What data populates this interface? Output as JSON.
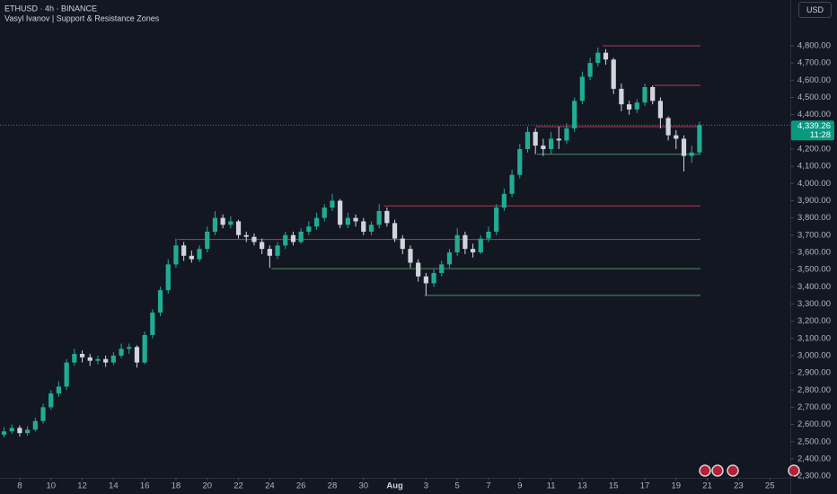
{
  "chart_data": {
    "type": "candlestick",
    "title": "ETHUSD · 4h · BINANCE",
    "subtitle": "Vasyl Ivanov | Support & Resistance Zones",
    "currency": "USD",
    "up_color": "#22ab94",
    "down_color": "#d1d4dc",
    "x": [
      -1,
      -0.5,
      0,
      0.5,
      1,
      1.5,
      2,
      2.5,
      3,
      3.5,
      4,
      4.5,
      5,
      5.5,
      6,
      6.5,
      7,
      7.5,
      8,
      8.5,
      9,
      9.5,
      10,
      10.5,
      11,
      11.5,
      12,
      12.5,
      13,
      13.5,
      14,
      14.5,
      15,
      15.5,
      16,
      16.5,
      17,
      17.5,
      18,
      18.5,
      19,
      19.5,
      20,
      20.5,
      21,
      21.5,
      22,
      22.5,
      23,
      23.5,
      24,
      24.5,
      25,
      25.5,
      26,
      26.5,
      27,
      27.5,
      28,
      28.5,
      29,
      29.5,
      30,
      30.5,
      31,
      31.5,
      32,
      32.5,
      33,
      33.5,
      34,
      34.5,
      35,
      35.5,
      36,
      36.5,
      37,
      37.5,
      38,
      38.5,
      39,
      39.5,
      40,
      40.5,
      41,
      41.5,
      42,
      42.5,
      43,
      43.5
    ],
    "open": [
      2540,
      2560,
      2580,
      2550,
      2570,
      2620,
      2700,
      2780,
      2820,
      2960,
      3010,
      2990,
      2970,
      2980,
      2960,
      3000,
      3040,
      3050,
      2960,
      3120,
      3250,
      3380,
      3530,
      3640,
      3580,
      3560,
      3620,
      3720,
      3800,
      3760,
      3780,
      3700,
      3690,
      3660,
      3620,
      3580,
      3640,
      3700,
      3660,
      3720,
      3750,
      3800,
      3860,
      3900,
      3760,
      3800,
      3780,
      3720,
      3760,
      3840,
      3770,
      3680,
      3620,
      3540,
      3460,
      3420,
      3480,
      3530,
      3600,
      3700,
      3620,
      3600,
      3680,
      3720,
      3860,
      3940,
      4050,
      4200,
      4300,
      4220,
      4200,
      4260,
      4250,
      4320,
      4480,
      4620,
      4700,
      4760,
      4720,
      4550,
      4460,
      4430,
      4470,
      4560,
      4480,
      4380,
      4280,
      4260,
      4160,
      4180
    ],
    "high": [
      2585,
      2600,
      2595,
      2590,
      2640,
      2720,
      2800,
      2850,
      2980,
      3040,
      3030,
      3010,
      3000,
      3000,
      3020,
      3070,
      3070,
      3060,
      3140,
      3270,
      3400,
      3560,
      3680,
      3660,
      3610,
      3640,
      3750,
      3840,
      3820,
      3810,
      3790,
      3720,
      3710,
      3680,
      3640,
      3660,
      3720,
      3720,
      3740,
      3780,
      3830,
      3880,
      3940,
      3910,
      3830,
      3820,
      3800,
      3780,
      3880,
      3860,
      3790,
      3700,
      3640,
      3560,
      3480,
      3500,
      3550,
      3620,
      3740,
      3720,
      3650,
      3700,
      3750,
      3880,
      3970,
      4080,
      4230,
      4330,
      4320,
      4260,
      4300,
      4330,
      4350,
      4500,
      4650,
      4730,
      4790,
      4780,
      4730,
      4580,
      4480,
      4490,
      4580,
      4570,
      4500,
      4390,
      4310,
      4280,
      4220,
      4360
    ],
    "low": [
      2525,
      2545,
      2530,
      2535,
      2560,
      2605,
      2685,
      2760,
      2800,
      2940,
      2960,
      2940,
      2950,
      2935,
      2945,
      2985,
      3010,
      2930,
      2950,
      3100,
      3230,
      3360,
      3510,
      3550,
      3540,
      3545,
      3600,
      3700,
      3740,
      3740,
      3680,
      3660,
      3640,
      3590,
      3510,
      3560,
      3620,
      3640,
      3650,
      3700,
      3730,
      3780,
      3840,
      3740,
      3740,
      3750,
      3700,
      3700,
      3740,
      3750,
      3660,
      3590,
      3510,
      3430,
      3350,
      3400,
      3460,
      3510,
      3580,
      3590,
      3570,
      3590,
      3660,
      3700,
      3840,
      3920,
      4030,
      4180,
      4170,
      4160,
      4170,
      4200,
      4230,
      4300,
      4460,
      4600,
      4680,
      4690,
      4520,
      4420,
      4400,
      4410,
      4450,
      4460,
      4320,
      4250,
      4200,
      4070,
      4120,
      4170
    ],
    "close": [
      2560,
      2580,
      2550,
      2570,
      2620,
      2700,
      2780,
      2820,
      2960,
      3010,
      2990,
      2970,
      2980,
      2960,
      3000,
      3040,
      3050,
      2960,
      3120,
      3250,
      3380,
      3530,
      3640,
      3580,
      3560,
      3620,
      3720,
      3800,
      3760,
      3780,
      3700,
      3690,
      3660,
      3620,
      3580,
      3640,
      3700,
      3660,
      3720,
      3750,
      3800,
      3860,
      3900,
      3760,
      3800,
      3780,
      3720,
      3760,
      3840,
      3770,
      3680,
      3620,
      3540,
      3460,
      3420,
      3480,
      3530,
      3600,
      3700,
      3620,
      3600,
      3680,
      3720,
      3860,
      3940,
      4050,
      4200,
      4300,
      4220,
      4200,
      4260,
      4250,
      4320,
      4480,
      4620,
      4700,
      4760,
      4720,
      4550,
      4460,
      4430,
      4470,
      4560,
      4480,
      4380,
      4280,
      4260,
      4160,
      4180,
      4339.26
    ],
    "zones": [
      {
        "level": 4800,
        "start": 37.3,
        "color": "#b23a55"
      },
      {
        "level": 4570,
        "start": 40.6,
        "color": "#b23a55"
      },
      {
        "level": 4330,
        "start": 33.0,
        "color": "#b23a55"
      },
      {
        "level": 4170,
        "start": 33.1,
        "color": "#4e8f6a"
      },
      {
        "level": 3870,
        "start": 23.3,
        "color": "#b23a55"
      },
      {
        "level": 3675,
        "start": 10.1,
        "color": "#b23a55"
      },
      {
        "level": 3505,
        "start": 16.1,
        "color": "#4e8f6a"
      },
      {
        "level": 3350,
        "start": 25.9,
        "color": "#4e8f6a"
      }
    ],
    "last_price": {
      "value": 4339.26,
      "label": "4,339.26"
    },
    "last_price_color": "#089981",
    "countdown": "11:28",
    "xlim": [
      -1.26,
      49.31
    ],
    "ylim": [
      2290,
      5066
    ],
    "xticks": [
      {
        "value": 0,
        "label": "8"
      },
      {
        "value": 2,
        "label": "10"
      },
      {
        "value": 4,
        "label": "12"
      },
      {
        "value": 6,
        "label": "14"
      },
      {
        "value": 8,
        "label": "16"
      },
      {
        "value": 10,
        "label": "18"
      },
      {
        "value": 12,
        "label": "20"
      },
      {
        "value": 14,
        "label": "22"
      },
      {
        "value": 16,
        "label": "24"
      },
      {
        "value": 18,
        "label": "26"
      },
      {
        "value": 20,
        "label": "28"
      },
      {
        "value": 22,
        "label": "30"
      },
      {
        "value": 24,
        "label": "Aug"
      },
      {
        "value": 26,
        "label": "3"
      },
      {
        "value": 28,
        "label": "5"
      },
      {
        "value": 30,
        "label": "7"
      },
      {
        "value": 32,
        "label": "9"
      },
      {
        "value": 34,
        "label": "11"
      },
      {
        "value": 36,
        "label": "13"
      },
      {
        "value": 38,
        "label": "15"
      },
      {
        "value": 40,
        "label": "17"
      },
      {
        "value": 42,
        "label": "19"
      },
      {
        "value": 44,
        "label": "21"
      },
      {
        "value": 46,
        "label": "23"
      },
      {
        "value": 48,
        "label": "25"
      }
    ],
    "yticks": [
      {
        "value": 2300,
        "label": "2,300.00"
      },
      {
        "value": 2400,
        "label": "2,400.00"
      },
      {
        "value": 2500,
        "label": "2,500.00"
      },
      {
        "value": 2600,
        "label": "2,600.00"
      },
      {
        "value": 2700,
        "label": "2,700.00"
      },
      {
        "value": 2800,
        "label": "2,800.00"
      },
      {
        "value": 2900,
        "label": "2,900.00"
      },
      {
        "value": 3000,
        "label": "3,000.00"
      },
      {
        "value": 3100,
        "label": "3,100.00"
      },
      {
        "value": 3200,
        "label": "3,200.00"
      },
      {
        "value": 3300,
        "label": "3,300.00"
      },
      {
        "value": 3400,
        "label": "3,400.00"
      },
      {
        "value": 3500,
        "label": "3,500.00"
      },
      {
        "value": 3600,
        "label": "3,600.00"
      },
      {
        "value": 3700,
        "label": "3,700.00"
      },
      {
        "value": 3800,
        "label": "3,800.00"
      },
      {
        "value": 3900,
        "label": "3,900.00"
      },
      {
        "value": 4000,
        "label": "4,000.00"
      },
      {
        "value": 4100,
        "label": "4,100.00"
      },
      {
        "value": 4200,
        "label": "4,200.00"
      },
      {
        "value": 4300,
        "label": "4,300.00"
      },
      {
        "value": 4400,
        "label": "4,400.00"
      },
      {
        "value": 4500,
        "label": "4,500.00"
      },
      {
        "value": 4600,
        "label": "4,600.00"
      },
      {
        "value": 4700,
        "label": "4,700.00"
      },
      {
        "value": 4800,
        "label": "4,800.00"
      }
    ],
    "grid": false
  }
}
